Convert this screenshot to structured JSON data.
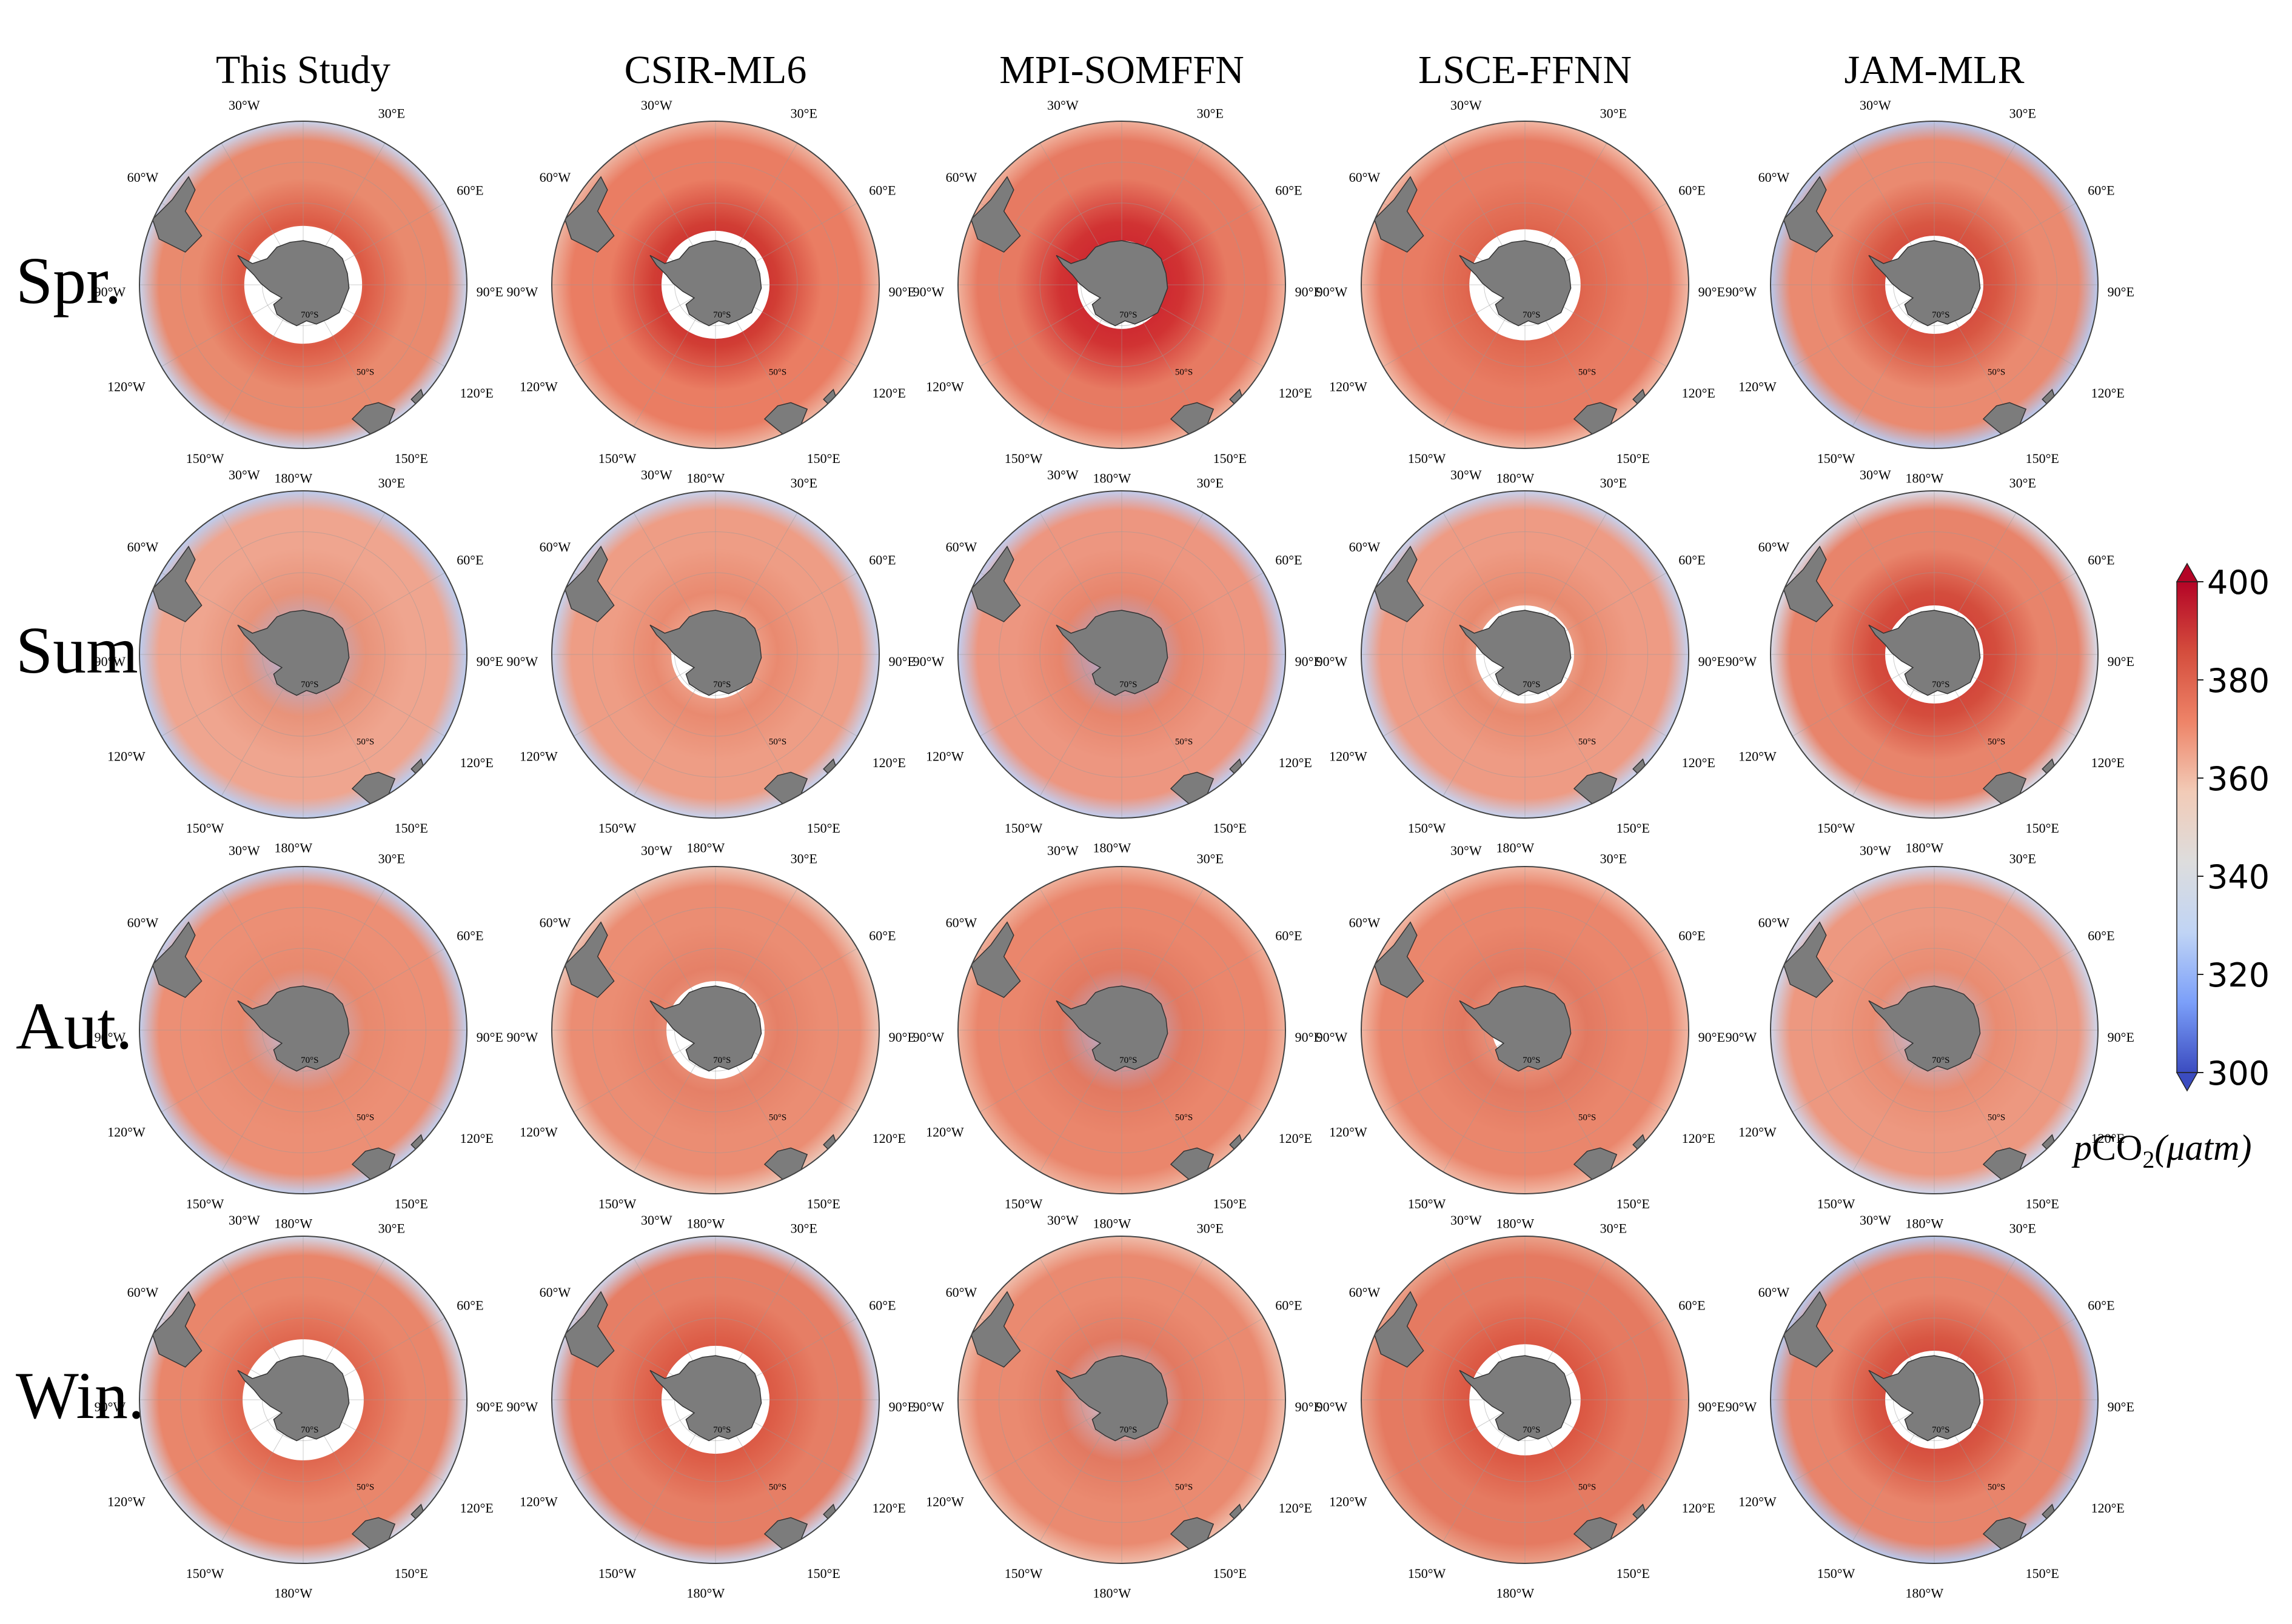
{
  "columns": [
    "This Study",
    "CSIR-ML6",
    "MPI-SOMFFN",
    "LSCE-FFNN",
    "JAM-MLR"
  ],
  "rows": [
    "Spr.",
    "Sum.",
    "Aut.",
    "Win."
  ],
  "map_labels": {
    "lon": [
      "30°W",
      "30°E",
      "60°W",
      "60°E",
      "90°W",
      "90°E",
      "120°W",
      "120°E",
      "150°W",
      "150°E",
      "180°W"
    ],
    "lat": [
      "70°S",
      "50°S"
    ]
  },
  "colorbar": {
    "min": 300,
    "max": 400,
    "ticks": [
      "400",
      "380",
      "360",
      "340",
      "320",
      "300"
    ],
    "title_prefix": "p",
    "title_main": "CO",
    "title_sub": "2",
    "title_unit": "(μatm)",
    "colors": [
      "#3b4cc0",
      "#7b9ff9",
      "#c0d4f5",
      "#dddddd",
      "#f2cbb7",
      "#ee8468",
      "#d44d3d",
      "#b40426"
    ]
  },
  "panels": [
    [
      {
        "ocean": "#e98a6e",
        "inner": "#f0a58d",
        "outer": "#c9d3ec",
        "ring": "#dc5a45",
        "ice": "#ffffff",
        "ice_r": 0.36
      },
      {
        "ocean": "#ea7d63",
        "inner": "#c8152b",
        "outer": "#edb3a0",
        "ring": "#d13d34",
        "ice": "#ffffff",
        "ice_r": 0.33
      },
      {
        "ocean": "#e77a62",
        "inner": "#c8152b",
        "outer": "#f0b09b",
        "ring": "#d13333",
        "ice": "#ffffff",
        "ice_r": 0.27
      },
      {
        "ocean": "#e87c63",
        "inner": "#d13d34",
        "outer": "#f1b8a5",
        "ring": "#e06850",
        "ice": "#ffffff",
        "ice_r": 0.34
      },
      {
        "ocean": "#ea8a70",
        "inner": "#cf2e32",
        "outer": "#b8c9ee",
        "ring": "#d85743",
        "ice": "#ffffff",
        "ice_r": 0.3
      }
    ],
    [
      {
        "ocean": "#efa58f",
        "inner": "#9fb8ef",
        "outer": "#bccdf0",
        "ring": "#e8937a",
        "ice": "#ffffff",
        "ice_r": 0.12
      },
      {
        "ocean": "#ee9d85",
        "inner": "#f4c2b0",
        "outer": "#c7d2ee",
        "ring": "#e98a70",
        "ice": "#ffffff",
        "ice_r": 0.27
      },
      {
        "ocean": "#ed9680",
        "inner": "#9ab3ee",
        "outer": "#c2cdef",
        "ring": "#e7856c",
        "ice": "#ffffff",
        "ice_r": 0.15
      },
      {
        "ocean": "#ee9b84",
        "inner": "#f5d5c8",
        "outer": "#c6d2ef",
        "ring": "#e8896e",
        "ice": "#ffffff",
        "ice_r": 0.3
      },
      {
        "ocean": "#e8846b",
        "inner": "#cf2e32",
        "outer": "#d8dcea",
        "ring": "#d44d3d",
        "ice": "#ffffff",
        "ice_r": 0.3
      }
    ],
    [
      {
        "ocean": "#ec8f75",
        "inner": "#b2c6f0",
        "outer": "#c2cfee",
        "ring": "#e8896e",
        "ice": "#ffffff",
        "ice_r": 0.08
      },
      {
        "ocean": "#eb8d73",
        "inner": "#f1b19c",
        "outer": "#ecc4b5",
        "ring": "#e58067",
        "ice": "#ffffff",
        "ice_r": 0.3
      },
      {
        "ocean": "#ea866c",
        "inner": "#a8bff0",
        "outer": "#efb09b",
        "ring": "#e27961",
        "ice": "#ffffff",
        "ice_r": 0.12
      },
      {
        "ocean": "#ea866c",
        "inner": "#f0ad98",
        "outer": "#f1b8a5",
        "ring": "#e27961",
        "ice": "#ffffff",
        "ice_r": 0.2
      },
      {
        "ocean": "#ed9880",
        "inner": "#b4c8f0",
        "outer": "#cfd6ec",
        "ring": "#e98c72",
        "ice": "#ffffff",
        "ice_r": 0.08
      }
    ],
    [
      {
        "ocean": "#e9866b",
        "inner": "#f4c2b0",
        "outer": "#d2d8ea",
        "ring": "#e06850",
        "ice": "#ffffff",
        "ice_r": 0.37
      },
      {
        "ocean": "#e67e65",
        "inner": "#d13d34",
        "outer": "#cdd5ec",
        "ring": "#dd5e48",
        "ice": "#ffffff",
        "ice_r": 0.33
      },
      {
        "ocean": "#ea8a70",
        "inner": "#c3d2f2",
        "outer": "#efbcaa",
        "ring": "#e27961",
        "ice": "#ffffff",
        "ice_r": 0.1
      },
      {
        "ocean": "#e57a61",
        "inner": "#d13d34",
        "outer": "#eaa18a",
        "ring": "#dc5a45",
        "ice": "#ffffff",
        "ice_r": 0.34
      },
      {
        "ocean": "#e8846b",
        "inner": "#cf2e32",
        "outer": "#b8c9ee",
        "ring": "#d85743",
        "ice": "#ffffff",
        "ice_r": 0.3
      }
    ]
  ]
}
